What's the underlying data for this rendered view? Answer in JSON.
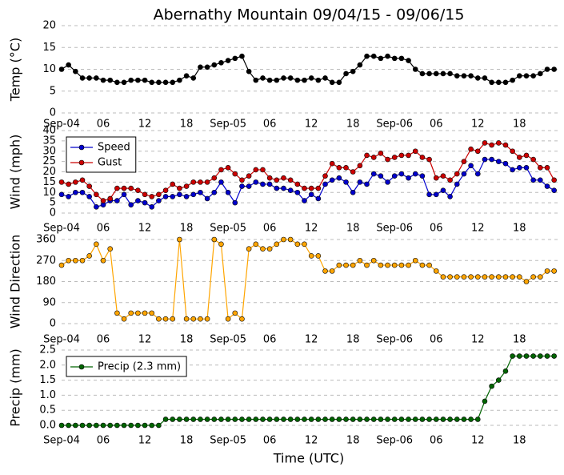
{
  "chart_data": [
    {
      "type": "line",
      "title": "Abernathy Mountain 09/04/15 - 09/06/15",
      "ylabel": "Temp (°C)",
      "x": [
        0,
        1,
        2,
        3,
        4,
        5,
        6,
        7,
        8,
        9,
        10,
        11,
        12,
        13,
        14,
        15,
        16,
        17,
        18,
        19,
        20,
        21,
        22,
        23,
        24,
        25,
        26,
        27,
        28,
        29,
        30,
        31,
        32,
        33,
        34,
        35,
        36,
        37,
        38,
        39,
        40,
        41,
        42,
        43,
        44,
        45,
        46,
        47,
        48,
        49,
        50,
        51,
        52,
        53,
        54,
        55,
        56,
        57,
        58,
        59,
        60,
        61,
        62,
        63,
        64,
        65,
        66,
        67,
        68,
        69,
        70,
        71
      ],
      "series": [
        {
          "color": "#000000",
          "values": [
            10,
            11,
            9.5,
            8,
            8,
            8,
            7.5,
            7.5,
            7,
            7,
            7.5,
            7.5,
            7.5,
            7,
            7,
            7,
            7,
            7.5,
            8.5,
            8,
            10.5,
            10.5,
            11,
            11.5,
            12,
            12.5,
            13,
            9.5,
            7.5,
            8,
            7.5,
            7.5,
            8,
            8,
            7.5,
            7.5,
            8,
            7.5,
            8,
            7,
            7,
            9,
            9.5,
            11,
            13,
            13,
            12.5,
            13,
            12.5,
            12.5,
            12,
            10,
            9,
            9,
            9,
            9,
            9,
            8.5,
            8.5,
            8.5,
            8,
            8,
            7,
            7,
            7,
            7.5,
            8.5,
            8.5,
            8.5,
            9,
            10,
            10
          ]
        }
      ],
      "xlim": [
        0,
        71.5
      ],
      "xticks": [
        {
          "value": 0,
          "label": "Sep-04"
        },
        {
          "value": 6,
          "label": "06"
        },
        {
          "value": 12,
          "label": "12"
        },
        {
          "value": 18,
          "label": "18"
        },
        {
          "value": 24,
          "label": "Sep-05"
        },
        {
          "value": 30,
          "label": "06"
        },
        {
          "value": 36,
          "label": "12"
        },
        {
          "value": 42,
          "label": "18"
        },
        {
          "value": 48,
          "label": "Sep-06"
        },
        {
          "value": 54,
          "label": "06"
        },
        {
          "value": 60,
          "label": "12"
        },
        {
          "value": 66,
          "label": "18"
        }
      ],
      "ylim": [
        0,
        20
      ],
      "yticks": [
        0,
        5,
        10,
        15,
        20
      ],
      "grid": true
    },
    {
      "type": "line",
      "ylabel": "Wind (mph)",
      "x": [
        0,
        1,
        2,
        3,
        4,
        5,
        6,
        7,
        8,
        9,
        10,
        11,
        12,
        13,
        14,
        15,
        16,
        17,
        18,
        19,
        20,
        21,
        22,
        23,
        24,
        25,
        26,
        27,
        28,
        29,
        30,
        31,
        32,
        33,
        34,
        35,
        36,
        37,
        38,
        39,
        40,
        41,
        42,
        43,
        44,
        45,
        46,
        47,
        48,
        49,
        50,
        51,
        52,
        53,
        54,
        55,
        56,
        57,
        58,
        59,
        60,
        61,
        62,
        63,
        64,
        65,
        66,
        67,
        68,
        69,
        70,
        71
      ],
      "series": [
        {
          "name": "Speed",
          "color": "#0000cc",
          "values": [
            9,
            8,
            10,
            10,
            8,
            3,
            4,
            6,
            6,
            9,
            4,
            6,
            5,
            3,
            6,
            8,
            8,
            9,
            8,
            9,
            10,
            7,
            10,
            15,
            10,
            5,
            13,
            13,
            15,
            14,
            14,
            12,
            12,
            11,
            10,
            6,
            9,
            7,
            14,
            16,
            17,
            15,
            10,
            15,
            14,
            19,
            18,
            15,
            18,
            19,
            17,
            19,
            18,
            9,
            9,
            11,
            8,
            14,
            19,
            23,
            19,
            26,
            26,
            25,
            24,
            21,
            22,
            22,
            16,
            16,
            13,
            11
          ]
        },
        {
          "name": "Gust",
          "color": "#cc0000",
          "values": [
            15,
            14,
            15,
            16,
            13,
            9,
            6,
            7,
            12,
            12,
            12,
            11,
            9,
            8,
            9,
            11,
            14,
            12,
            13,
            15,
            15,
            15,
            17,
            21,
            22,
            19,
            16,
            18,
            21,
            21,
            17,
            16,
            17,
            16,
            14,
            12,
            12,
            12,
            18,
            24,
            22,
            22,
            20,
            23,
            28,
            27,
            29,
            26,
            27,
            28,
            28,
            30,
            27,
            26,
            17,
            18,
            16,
            19,
            25,
            31,
            30,
            34,
            33,
            34,
            33,
            30,
            27,
            28,
            26,
            22,
            22,
            16
          ]
        }
      ],
      "xlim": [
        0,
        71.5
      ],
      "xticks": [
        {
          "value": 0,
          "label": "Sep-04"
        },
        {
          "value": 6,
          "label": "06"
        },
        {
          "value": 12,
          "label": "12"
        },
        {
          "value": 18,
          "label": "18"
        },
        {
          "value": 24,
          "label": "Sep-05"
        },
        {
          "value": 30,
          "label": "06"
        },
        {
          "value": 36,
          "label": "12"
        },
        {
          "value": 42,
          "label": "18"
        },
        {
          "value": 48,
          "label": "Sep-06"
        },
        {
          "value": 54,
          "label": "06"
        },
        {
          "value": 60,
          "label": "12"
        },
        {
          "value": 66,
          "label": "18"
        }
      ],
      "ylim": [
        0,
        40
      ],
      "yticks": [
        0,
        5,
        10,
        15,
        20,
        25,
        30,
        35,
        40
      ],
      "grid": true,
      "legend": "upper left"
    },
    {
      "type": "line",
      "ylabel": "Wind Direction",
      "x": [
        0,
        1,
        2,
        3,
        4,
        5,
        6,
        7,
        8,
        9,
        10,
        11,
        12,
        13,
        14,
        15,
        16,
        17,
        18,
        19,
        20,
        21,
        22,
        23,
        24,
        25,
        26,
        27,
        28,
        29,
        30,
        31,
        32,
        33,
        34,
        35,
        36,
        37,
        38,
        39,
        40,
        41,
        42,
        43,
        44,
        45,
        46,
        47,
        48,
        49,
        50,
        51,
        52,
        53,
        54,
        55,
        56,
        57,
        58,
        59,
        60,
        61,
        62,
        63,
        64,
        65,
        66,
        67,
        68,
        69,
        70,
        71
      ],
      "series": [
        {
          "color": "#ffa500",
          "values": [
            250,
            270,
            270,
            270,
            290,
            340,
            270,
            320,
            45,
            20,
            45,
            45,
            45,
            45,
            20,
            20,
            20,
            360,
            20,
            20,
            20,
            20,
            360,
            340,
            20,
            45,
            20,
            320,
            340,
            320,
            320,
            340,
            360,
            360,
            340,
            340,
            290,
            290,
            225,
            225,
            250,
            250,
            250,
            270,
            250,
            270,
            250,
            250,
            250,
            250,
            250,
            270,
            250,
            250,
            225,
            200,
            200,
            200,
            200,
            200,
            200,
            200,
            200,
            200,
            200,
            200,
            200,
            180,
            200,
            200,
            225,
            225
          ]
        }
      ],
      "xlim": [
        0,
        71.5
      ],
      "xticks": [
        {
          "value": 0,
          "label": "Sep-04"
        },
        {
          "value": 6,
          "label": "06"
        },
        {
          "value": 12,
          "label": "12"
        },
        {
          "value": 18,
          "label": "18"
        },
        {
          "value": 24,
          "label": "Sep-05"
        },
        {
          "value": 30,
          "label": "06"
        },
        {
          "value": 36,
          "label": "12"
        },
        {
          "value": 42,
          "label": "18"
        },
        {
          "value": 48,
          "label": "Sep-06"
        },
        {
          "value": 54,
          "label": "06"
        },
        {
          "value": 60,
          "label": "12"
        },
        {
          "value": 66,
          "label": "18"
        }
      ],
      "ylim": [
        0,
        360
      ],
      "yticks": [
        0,
        90,
        180,
        270,
        360
      ],
      "grid": true
    },
    {
      "type": "line",
      "ylabel": "Precip (mm)",
      "xlabel": "Time (UTC)",
      "x": [
        0,
        1,
        2,
        3,
        4,
        5,
        6,
        7,
        8,
        9,
        10,
        11,
        12,
        13,
        14,
        15,
        16,
        17,
        18,
        19,
        20,
        21,
        22,
        23,
        24,
        25,
        26,
        27,
        28,
        29,
        30,
        31,
        32,
        33,
        34,
        35,
        36,
        37,
        38,
        39,
        40,
        41,
        42,
        43,
        44,
        45,
        46,
        47,
        48,
        49,
        50,
        51,
        52,
        53,
        54,
        55,
        56,
        57,
        58,
        59,
        60,
        61,
        62,
        63,
        64,
        65,
        66,
        67,
        68,
        69,
        70,
        71
      ],
      "series": [
        {
          "name": "Precip (2.3 mm)",
          "color": "#006400",
          "values": [
            0,
            0,
            0,
            0,
            0,
            0,
            0,
            0,
            0,
            0,
            0,
            0,
            0,
            0,
            0,
            0.2,
            0.2,
            0.2,
            0.2,
            0.2,
            0.2,
            0.2,
            0.2,
            0.2,
            0.2,
            0.2,
            0.2,
            0.2,
            0.2,
            0.2,
            0.2,
            0.2,
            0.2,
            0.2,
            0.2,
            0.2,
            0.2,
            0.2,
            0.2,
            0.2,
            0.2,
            0.2,
            0.2,
            0.2,
            0.2,
            0.2,
            0.2,
            0.2,
            0.2,
            0.2,
            0.2,
            0.2,
            0.2,
            0.2,
            0.2,
            0.2,
            0.2,
            0.2,
            0.2,
            0.2,
            0.2,
            0.8,
            1.3,
            1.5,
            1.8,
            2.3,
            2.3,
            2.3,
            2.3,
            2.3,
            2.3,
            2.3
          ]
        }
      ],
      "xlim": [
        0,
        71.5
      ],
      "xticks": [
        {
          "value": 0,
          "label": "Sep-04"
        },
        {
          "value": 6,
          "label": "06"
        },
        {
          "value": 12,
          "label": "12"
        },
        {
          "value": 18,
          "label": "18"
        },
        {
          "value": 24,
          "label": "Sep-05"
        },
        {
          "value": 30,
          "label": "06"
        },
        {
          "value": 36,
          "label": "12"
        },
        {
          "value": 42,
          "label": "18"
        },
        {
          "value": 48,
          "label": "Sep-06"
        },
        {
          "value": 54,
          "label": "06"
        },
        {
          "value": 60,
          "label": "12"
        },
        {
          "value": 66,
          "label": "18"
        }
      ],
      "ylim": [
        0,
        2.5
      ],
      "yticks": [
        {
          "value": 0,
          "label": "0.0"
        },
        0.5,
        {
          "value": 1,
          "label": "1.0"
        },
        1.5,
        {
          "value": 2,
          "label": "2.0"
        },
        2.5
      ],
      "grid": true,
      "legend": "upper left"
    }
  ]
}
